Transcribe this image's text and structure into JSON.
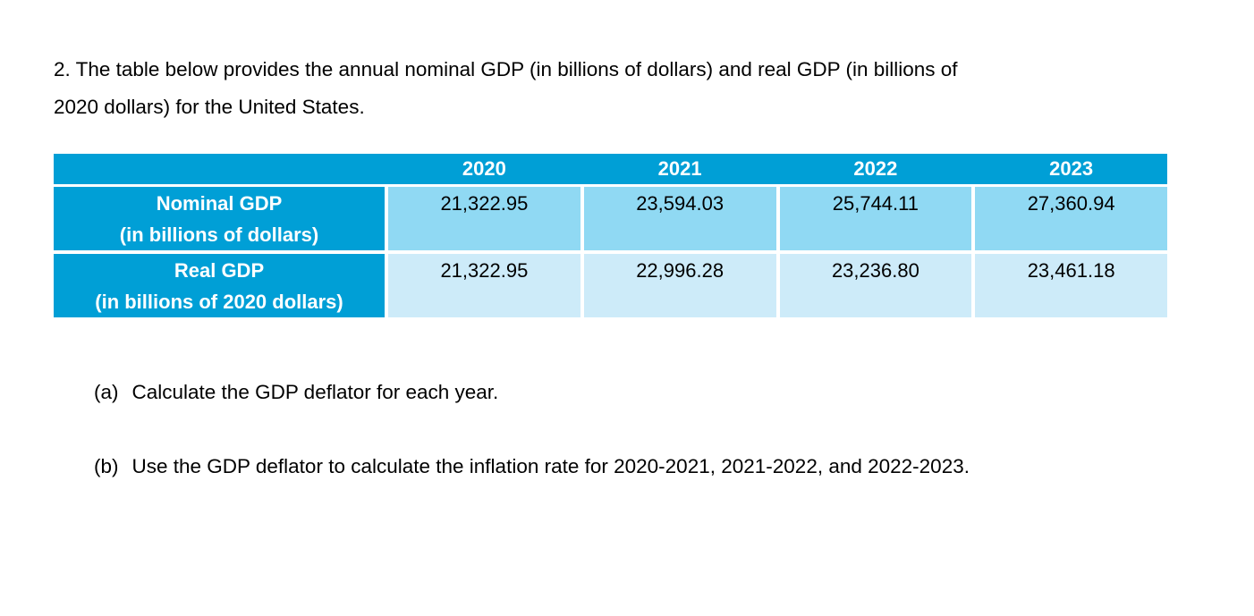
{
  "problem": {
    "intro_lines": [
      "2. The table below provides the annual nominal GDP (in billions of dollars) and real GDP (in billions of",
      "2020 dollars) for the United States."
    ]
  },
  "table": {
    "years": [
      "2020",
      "2021",
      "2022",
      "2023"
    ],
    "rows": [
      {
        "label_line1": "Nominal GDP",
        "label_line2": "(in billions of dollars)",
        "values": [
          "21,322.95",
          "23,594.03",
          "25,744.11",
          "27,360.94"
        ]
      },
      {
        "label_line1": "Real GDP",
        "label_line2": "(in billions of 2020 dollars)",
        "values": [
          "21,322.95",
          "22,996.28",
          "23,236.80",
          "23,461.18"
        ]
      }
    ],
    "colors": {
      "header": "#009fd6",
      "row1_cell": "#90d9f3",
      "row2_cell": "#cdebf9"
    }
  },
  "questions": [
    {
      "marker": "(a)",
      "text": "Calculate the GDP deflator for each year."
    },
    {
      "marker": "(b)",
      "text": "Use the GDP deflator to calculate the inflation rate for 2020-2021, 2021-2022, and 2022-2023."
    }
  ]
}
